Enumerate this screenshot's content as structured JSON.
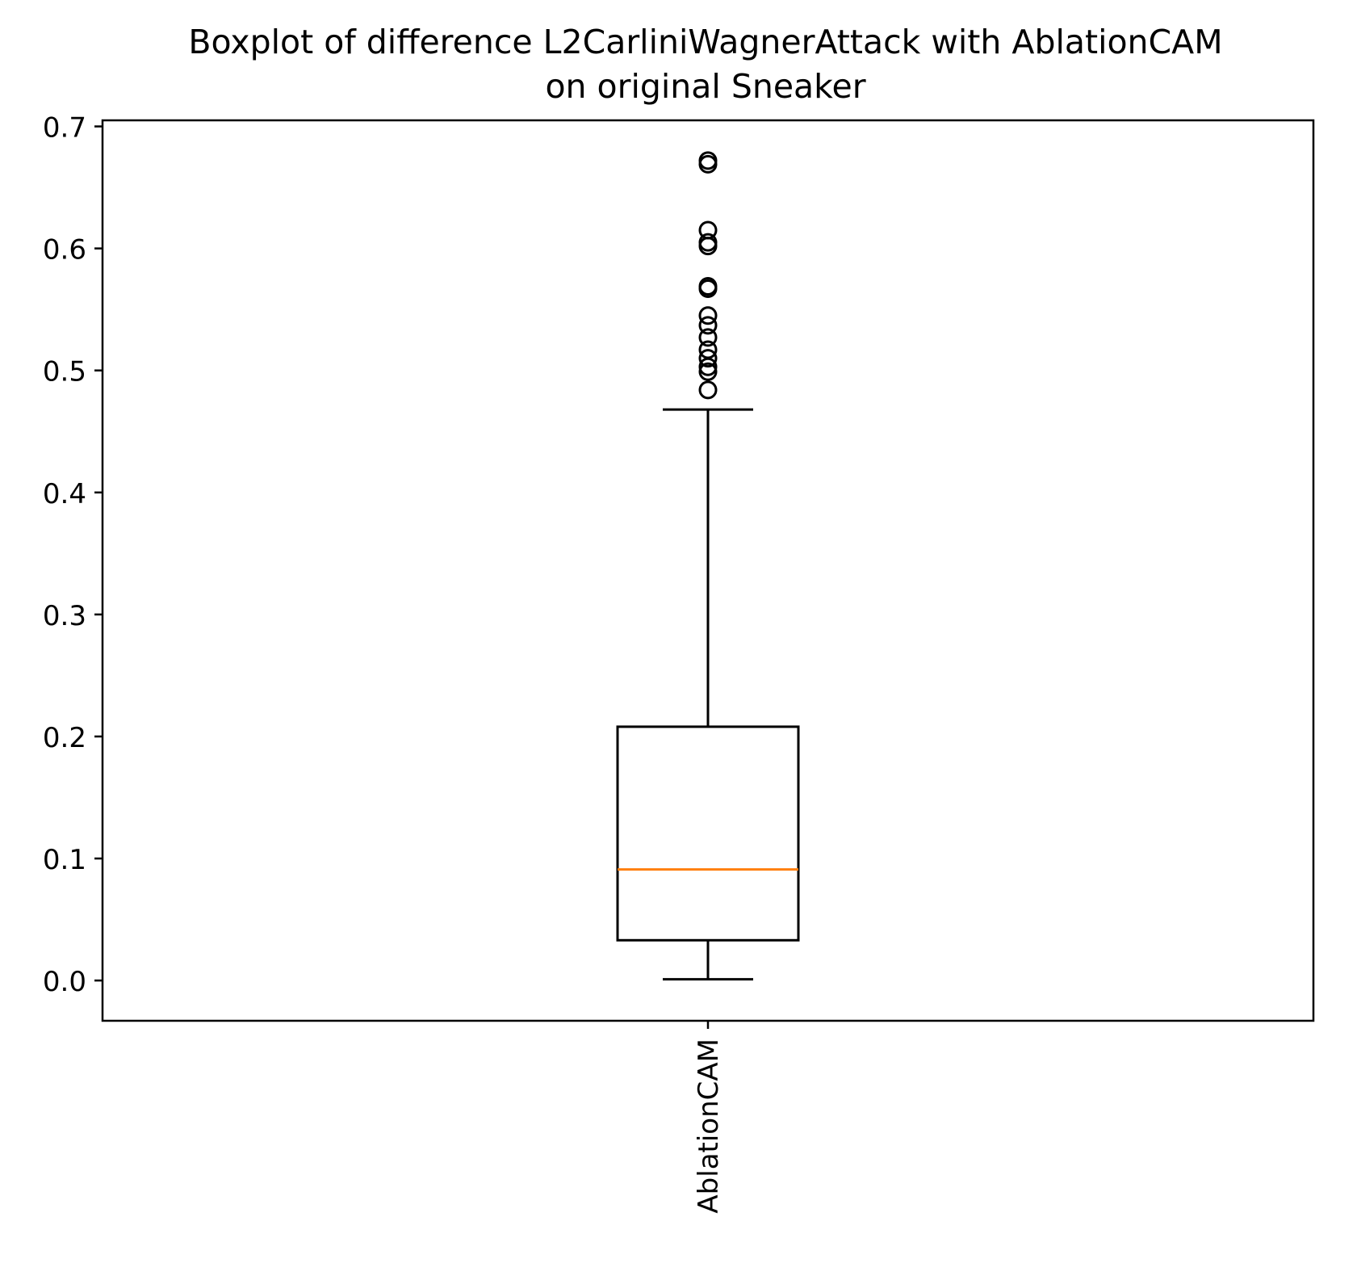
{
  "chart_data": {
    "type": "boxplot",
    "title": "Boxplot of difference L2CarliniWagnerAttack with AblationCAM\non original Sneaker",
    "title_lines": [
      "Boxplot of difference L2CarliniWagnerAttack with AblationCAM",
      "on original Sneaker"
    ],
    "xlabel": "",
    "ylabel": "",
    "ylim": [
      -0.033,
      0.705
    ],
    "y_ticks": [
      0.0,
      0.1,
      0.2,
      0.3,
      0.4,
      0.5,
      0.6,
      0.7
    ],
    "y_tick_labels": [
      "0.0",
      "0.1",
      "0.2",
      "0.3",
      "0.4",
      "0.5",
      "0.6",
      "0.7"
    ],
    "categories": [
      "AblationCAM"
    ],
    "x_tick_rotation": "vertical",
    "grid": false,
    "boxes": [
      {
        "name": "AblationCAM",
        "whisker_low": 0.001,
        "q1": 0.033,
        "median": 0.091,
        "q3": 0.208,
        "whisker_high": 0.468,
        "outliers": [
          0.484,
          0.499,
          0.503,
          0.51,
          0.517,
          0.527,
          0.537,
          0.545,
          0.567,
          0.569,
          0.602,
          0.605,
          0.615,
          0.669,
          0.672
        ]
      }
    ],
    "colors": {
      "box": "#000000",
      "median": "#ff7f0e",
      "outlier": "#000000",
      "background": "#ffffff"
    }
  }
}
